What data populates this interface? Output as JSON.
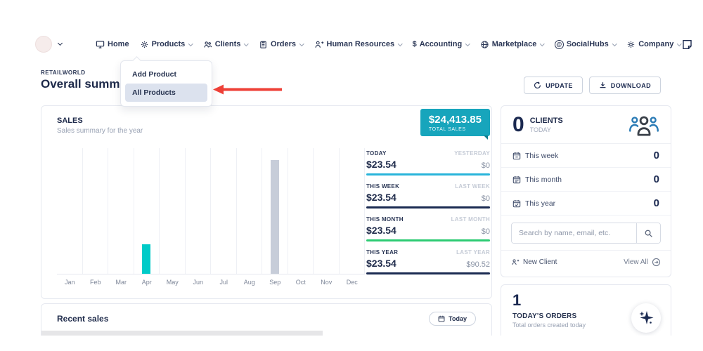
{
  "icons": {
    "dollar_glyph": "$",
    "at_glyph": "@",
    "question_glyph": "?"
  },
  "nav": {
    "items": [
      {
        "label": "Home"
      },
      {
        "label": "Products"
      },
      {
        "label": "Clients"
      },
      {
        "label": "Orders"
      },
      {
        "label": "Human Resources"
      },
      {
        "label": "Accounting"
      },
      {
        "label": "Marketplace"
      },
      {
        "label": "SocialHubs"
      },
      {
        "label": "Company"
      }
    ]
  },
  "products_dropdown": {
    "items": [
      {
        "label": "Add Product"
      },
      {
        "label": "All Products"
      }
    ],
    "selected": "All Products"
  },
  "page": {
    "eyebrow": "RETAILWORLD",
    "title": "Overall summary",
    "update_label": "UPDATE",
    "download_label": "DOWNLOAD"
  },
  "sales_card": {
    "title": "SALES",
    "subtitle": "Sales summary for the year",
    "total_value": "$24,413.85",
    "total_label": "TOTAL SALES",
    "stats": [
      {
        "label": "TODAY",
        "value": "$23.54",
        "compare_label": "YESTERDAY",
        "compare_value": "$0",
        "underline_color": "#29b4da"
      },
      {
        "label": "THIS WEEK",
        "value": "$23.54",
        "compare_label": "LAST WEEK",
        "compare_value": "$0",
        "underline_color": "#1b2b52"
      },
      {
        "label": "THIS MONTH",
        "value": "$23.54",
        "compare_label": "LAST MONTH",
        "compare_value": "$0",
        "underline_color": "#2dcb73"
      },
      {
        "label": "THIS YEAR",
        "value": "$23.54",
        "compare_label": "LAST YEAR",
        "compare_value": "$90.52",
        "underline_color": "#1b2b52"
      }
    ]
  },
  "chart_data": {
    "type": "bar",
    "title": "Sales summary for the year",
    "categories": [
      "Jan",
      "Feb",
      "Mar",
      "Apr",
      "May",
      "Jun",
      "Jul",
      "Aug",
      "Sep",
      "Oct",
      "Nov",
      "Dec"
    ],
    "series": [
      {
        "name": "This year",
        "color": "#00cbc8",
        "values": [
          0,
          0,
          0,
          23.54,
          0,
          0,
          0,
          0,
          0,
          0,
          0,
          0
        ]
      },
      {
        "name": "Last year",
        "color": "#c7cdd9",
        "values": [
          0,
          0,
          0,
          0,
          0,
          0,
          0,
          0,
          90.52,
          0,
          0,
          0
        ]
      }
    ],
    "ylim": [
      0,
      100
    ],
    "xlabel": "",
    "ylabel": "",
    "grid": "vertical-only",
    "legend": "none"
  },
  "clients_card": {
    "count": "0",
    "title": "CLIENTS",
    "subtitle": "TODAY",
    "rows": [
      {
        "label": "This week",
        "value": "0"
      },
      {
        "label": "This month",
        "value": "0"
      },
      {
        "label": "This year",
        "value": "0"
      }
    ],
    "search_placeholder": "Search by name, email, etc.",
    "new_client_label": "New Client",
    "view_all_label": "View All"
  },
  "orders_card": {
    "count": "1",
    "title": "TODAY'S ORDERS",
    "subtitle": "Total orders created today"
  },
  "recent_sales": {
    "title": "Recent sales",
    "filter_label": "Today"
  }
}
